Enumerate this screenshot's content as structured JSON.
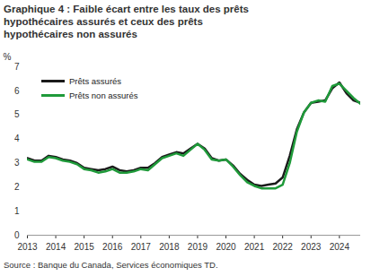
{
  "chart_data": {
    "type": "line",
    "title": "Graphique 4 : Faible écart entre les taux des prêts hypothécaires assurés et ceux des prêts hypothécaires non assurés",
    "y_label": "%",
    "source": "Source : Banque du Canada, Services économiques  TD.",
    "x": [
      2013,
      2013.25,
      2013.5,
      2013.75,
      2014,
      2014.25,
      2014.5,
      2014.75,
      2015,
      2015.25,
      2015.5,
      2015.75,
      2016,
      2016.25,
      2016.5,
      2016.75,
      2017,
      2017.25,
      2017.5,
      2017.75,
      2018,
      2018.25,
      2018.5,
      2018.75,
      2019,
      2019.25,
      2019.5,
      2019.75,
      2020,
      2020.25,
      2020.5,
      2020.75,
      2021,
      2021.25,
      2021.5,
      2021.75,
      2022,
      2022.25,
      2022.5,
      2022.75,
      2023,
      2023.25,
      2023.5,
      2023.75,
      2024,
      2024.25,
      2024.5,
      2024.75
    ],
    "series": [
      {
        "name": "Prêts assurés",
        "color": "#1a1a1a",
        "values": [
          3.2,
          3.1,
          3.1,
          3.3,
          3.25,
          3.15,
          3.1,
          3.0,
          2.8,
          2.75,
          2.7,
          2.75,
          2.85,
          2.7,
          2.65,
          2.7,
          2.8,
          2.8,
          3.0,
          3.25,
          3.35,
          3.45,
          3.4,
          3.6,
          3.8,
          3.6,
          3.2,
          3.1,
          3.15,
          2.9,
          2.55,
          2.3,
          2.1,
          2.05,
          2.1,
          2.15,
          2.4,
          3.3,
          4.4,
          5.1,
          5.5,
          5.55,
          5.6,
          6.1,
          6.35,
          5.9,
          5.6,
          5.5
        ]
      },
      {
        "name": "Prêts non assurés",
        "color": "#1f9a3a",
        "values": [
          3.15,
          3.05,
          3.05,
          3.25,
          3.2,
          3.1,
          3.05,
          2.95,
          2.75,
          2.7,
          2.6,
          2.65,
          2.75,
          2.6,
          2.6,
          2.65,
          2.75,
          2.7,
          2.95,
          3.2,
          3.3,
          3.4,
          3.3,
          3.55,
          3.8,
          3.55,
          3.15,
          3.1,
          3.15,
          2.85,
          2.5,
          2.2,
          2.05,
          1.95,
          1.95,
          1.95,
          2.1,
          3.0,
          4.3,
          5.1,
          5.5,
          5.6,
          5.55,
          6.2,
          6.3,
          6.0,
          5.7,
          5.45
        ]
      }
    ],
    "xlim": [
      2013,
      2024.75
    ],
    "xticks": [
      2013,
      2014,
      2015,
      2016,
      2017,
      2018,
      2019,
      2020,
      2021,
      2022,
      2023,
      2024
    ],
    "ylim": [
      0,
      7
    ],
    "yticks": [
      0,
      1,
      2,
      3,
      4,
      5,
      6,
      7
    ],
    "grid": false,
    "legend": "upper left"
  }
}
